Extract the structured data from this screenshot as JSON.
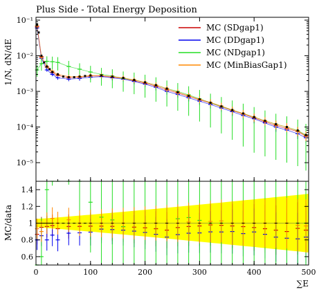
{
  "chart_data": {
    "type": "line",
    "title": "Plus Side - Total Energy Deposition",
    "xlabel": "∑E",
    "ylabel_top": "1/N, dN/dE",
    "ylabel_ratio": "MC/data",
    "xlim": [
      0,
      500
    ],
    "ylim_top": [
      3e-06,
      0.12
    ],
    "yscale_top": "log",
    "ylim_ratio": [
      0.5,
      1.5
    ],
    "x_ticks": [
      "0",
      "100",
      "200",
      "300",
      "400",
      "500"
    ],
    "y_ticks_top": [
      {
        "value": 1e-05,
        "label": "10⁻⁵"
      },
      {
        "value": 0.0001,
        "label": "10⁻⁴"
      },
      {
        "value": 0.001,
        "label": "10⁻³"
      },
      {
        "value": 0.01,
        "label": "10⁻²"
      },
      {
        "value": 0.1,
        "label": "10⁻¹"
      }
    ],
    "y_ticks_ratio": [
      "0.6",
      "0.8",
      "1",
      "1.2",
      "1.4"
    ],
    "legend_position": "top-right",
    "grid": false,
    "data_points": [
      [
        2,
        0.075
      ],
      [
        5,
        0.045
      ],
      [
        10,
        0.01
      ],
      [
        15,
        0.0065
      ],
      [
        20,
        0.005
      ],
      [
        25,
        0.0042
      ],
      [
        30,
        0.0035
      ],
      [
        40,
        0.003
      ],
      [
        50,
        0.0026
      ],
      [
        60,
        0.0025
      ],
      [
        70,
        0.0025
      ],
      [
        80,
        0.0026
      ],
      [
        90,
        0.0027
      ],
      [
        100,
        0.0028
      ],
      [
        120,
        0.0028
      ],
      [
        140,
        0.0026
      ],
      [
        160,
        0.0024
      ],
      [
        180,
        0.0021
      ],
      [
        200,
        0.0018
      ],
      [
        220,
        0.0015
      ],
      [
        240,
        0.0012
      ],
      [
        260,
        0.00095
      ],
      [
        280,
        0.00075
      ],
      [
        300,
        0.0006
      ],
      [
        320,
        0.00048
      ],
      [
        340,
        0.00038
      ],
      [
        360,
        0.0003
      ],
      [
        380,
        0.00024
      ],
      [
        400,
        0.00019
      ],
      [
        420,
        0.00015
      ],
      [
        440,
        0.00012
      ],
      [
        460,
        0.0001
      ],
      [
        480,
        8e-05
      ],
      [
        495,
        6e-05
      ]
    ],
    "series": [
      {
        "name": "MC (SDgap1)",
        "color": "#cc0000",
        "x": [
          2,
          10,
          20,
          30,
          40,
          60,
          80,
          100,
          120,
          140,
          160,
          180,
          200,
          220,
          240,
          260,
          280,
          300,
          320,
          340,
          360,
          380,
          400,
          420,
          440,
          460,
          480,
          495
        ],
        "y": [
          0.065,
          0.0095,
          0.0048,
          0.0034,
          0.0028,
          0.0024,
          0.0025,
          0.0027,
          0.0027,
          0.0025,
          0.0023,
          0.002,
          0.0017,
          0.0014,
          0.0011,
          0.0009,
          0.00072,
          0.00058,
          0.00047,
          0.00037,
          0.00029,
          0.00023,
          0.00018,
          0.00014,
          0.00011,
          9e-05,
          7.5e-05,
          5.5e-05
        ]
      },
      {
        "name": "MC (DDgap1)",
        "color": "#0000ee",
        "x": [
          2,
          10,
          20,
          30,
          40,
          60,
          80,
          100,
          120,
          140,
          160,
          180,
          200,
          220,
          240,
          260,
          280,
          300,
          320,
          340,
          360,
          380,
          400,
          420,
          440,
          460,
          480,
          495
        ],
        "y": [
          0.06,
          0.0085,
          0.004,
          0.003,
          0.0024,
          0.0022,
          0.0023,
          0.0025,
          0.0026,
          0.0024,
          0.0022,
          0.0019,
          0.0016,
          0.0013,
          0.001,
          0.00082,
          0.00066,
          0.00053,
          0.00043,
          0.00034,
          0.00027,
          0.00021,
          0.00017,
          0.00013,
          0.0001,
          8.2e-05,
          6.5e-05,
          5e-05
        ]
      },
      {
        "name": "MC (NDgap1)",
        "color": "#22dd22",
        "x": [
          2,
          10,
          20,
          30,
          40,
          60,
          80,
          100,
          120,
          140,
          160,
          180,
          200,
          220,
          240,
          260,
          280,
          300,
          320,
          340,
          360,
          380,
          400,
          420,
          440,
          460,
          480,
          495
        ],
        "y": [
          0.004,
          0.006,
          0.007,
          0.0068,
          0.0065,
          0.005,
          0.0042,
          0.0035,
          0.003,
          0.0027,
          0.0023,
          0.0021,
          0.0018,
          0.0015,
          0.0012,
          0.001,
          0.0008,
          0.00062,
          0.00048,
          0.00038,
          0.0003,
          0.00024,
          0.00019,
          0.00015,
          0.00012,
          0.0001,
          8e-05,
          6e-05
        ]
      },
      {
        "name": "MC (MinBiasGap1)",
        "color": "#ff8800",
        "x": [
          2,
          10,
          20,
          30,
          40,
          60,
          80,
          100,
          120,
          140,
          160,
          180,
          200,
          220,
          240,
          260,
          280,
          300,
          320,
          340,
          360,
          380,
          400,
          420,
          440,
          460,
          480,
          495
        ],
        "y": [
          0.07,
          0.009,
          0.005,
          0.0037,
          0.003,
          0.0026,
          0.0026,
          0.0028,
          0.0028,
          0.0026,
          0.0024,
          0.0021,
          0.0018,
          0.0015,
          0.0012,
          0.00095,
          0.00076,
          0.0006,
          0.00049,
          0.00039,
          0.0003,
          0.00024,
          0.00019,
          0.00015,
          0.00012,
          0.0001,
          7.8e-05,
          5.8e-05
        ]
      }
    ]
  }
}
